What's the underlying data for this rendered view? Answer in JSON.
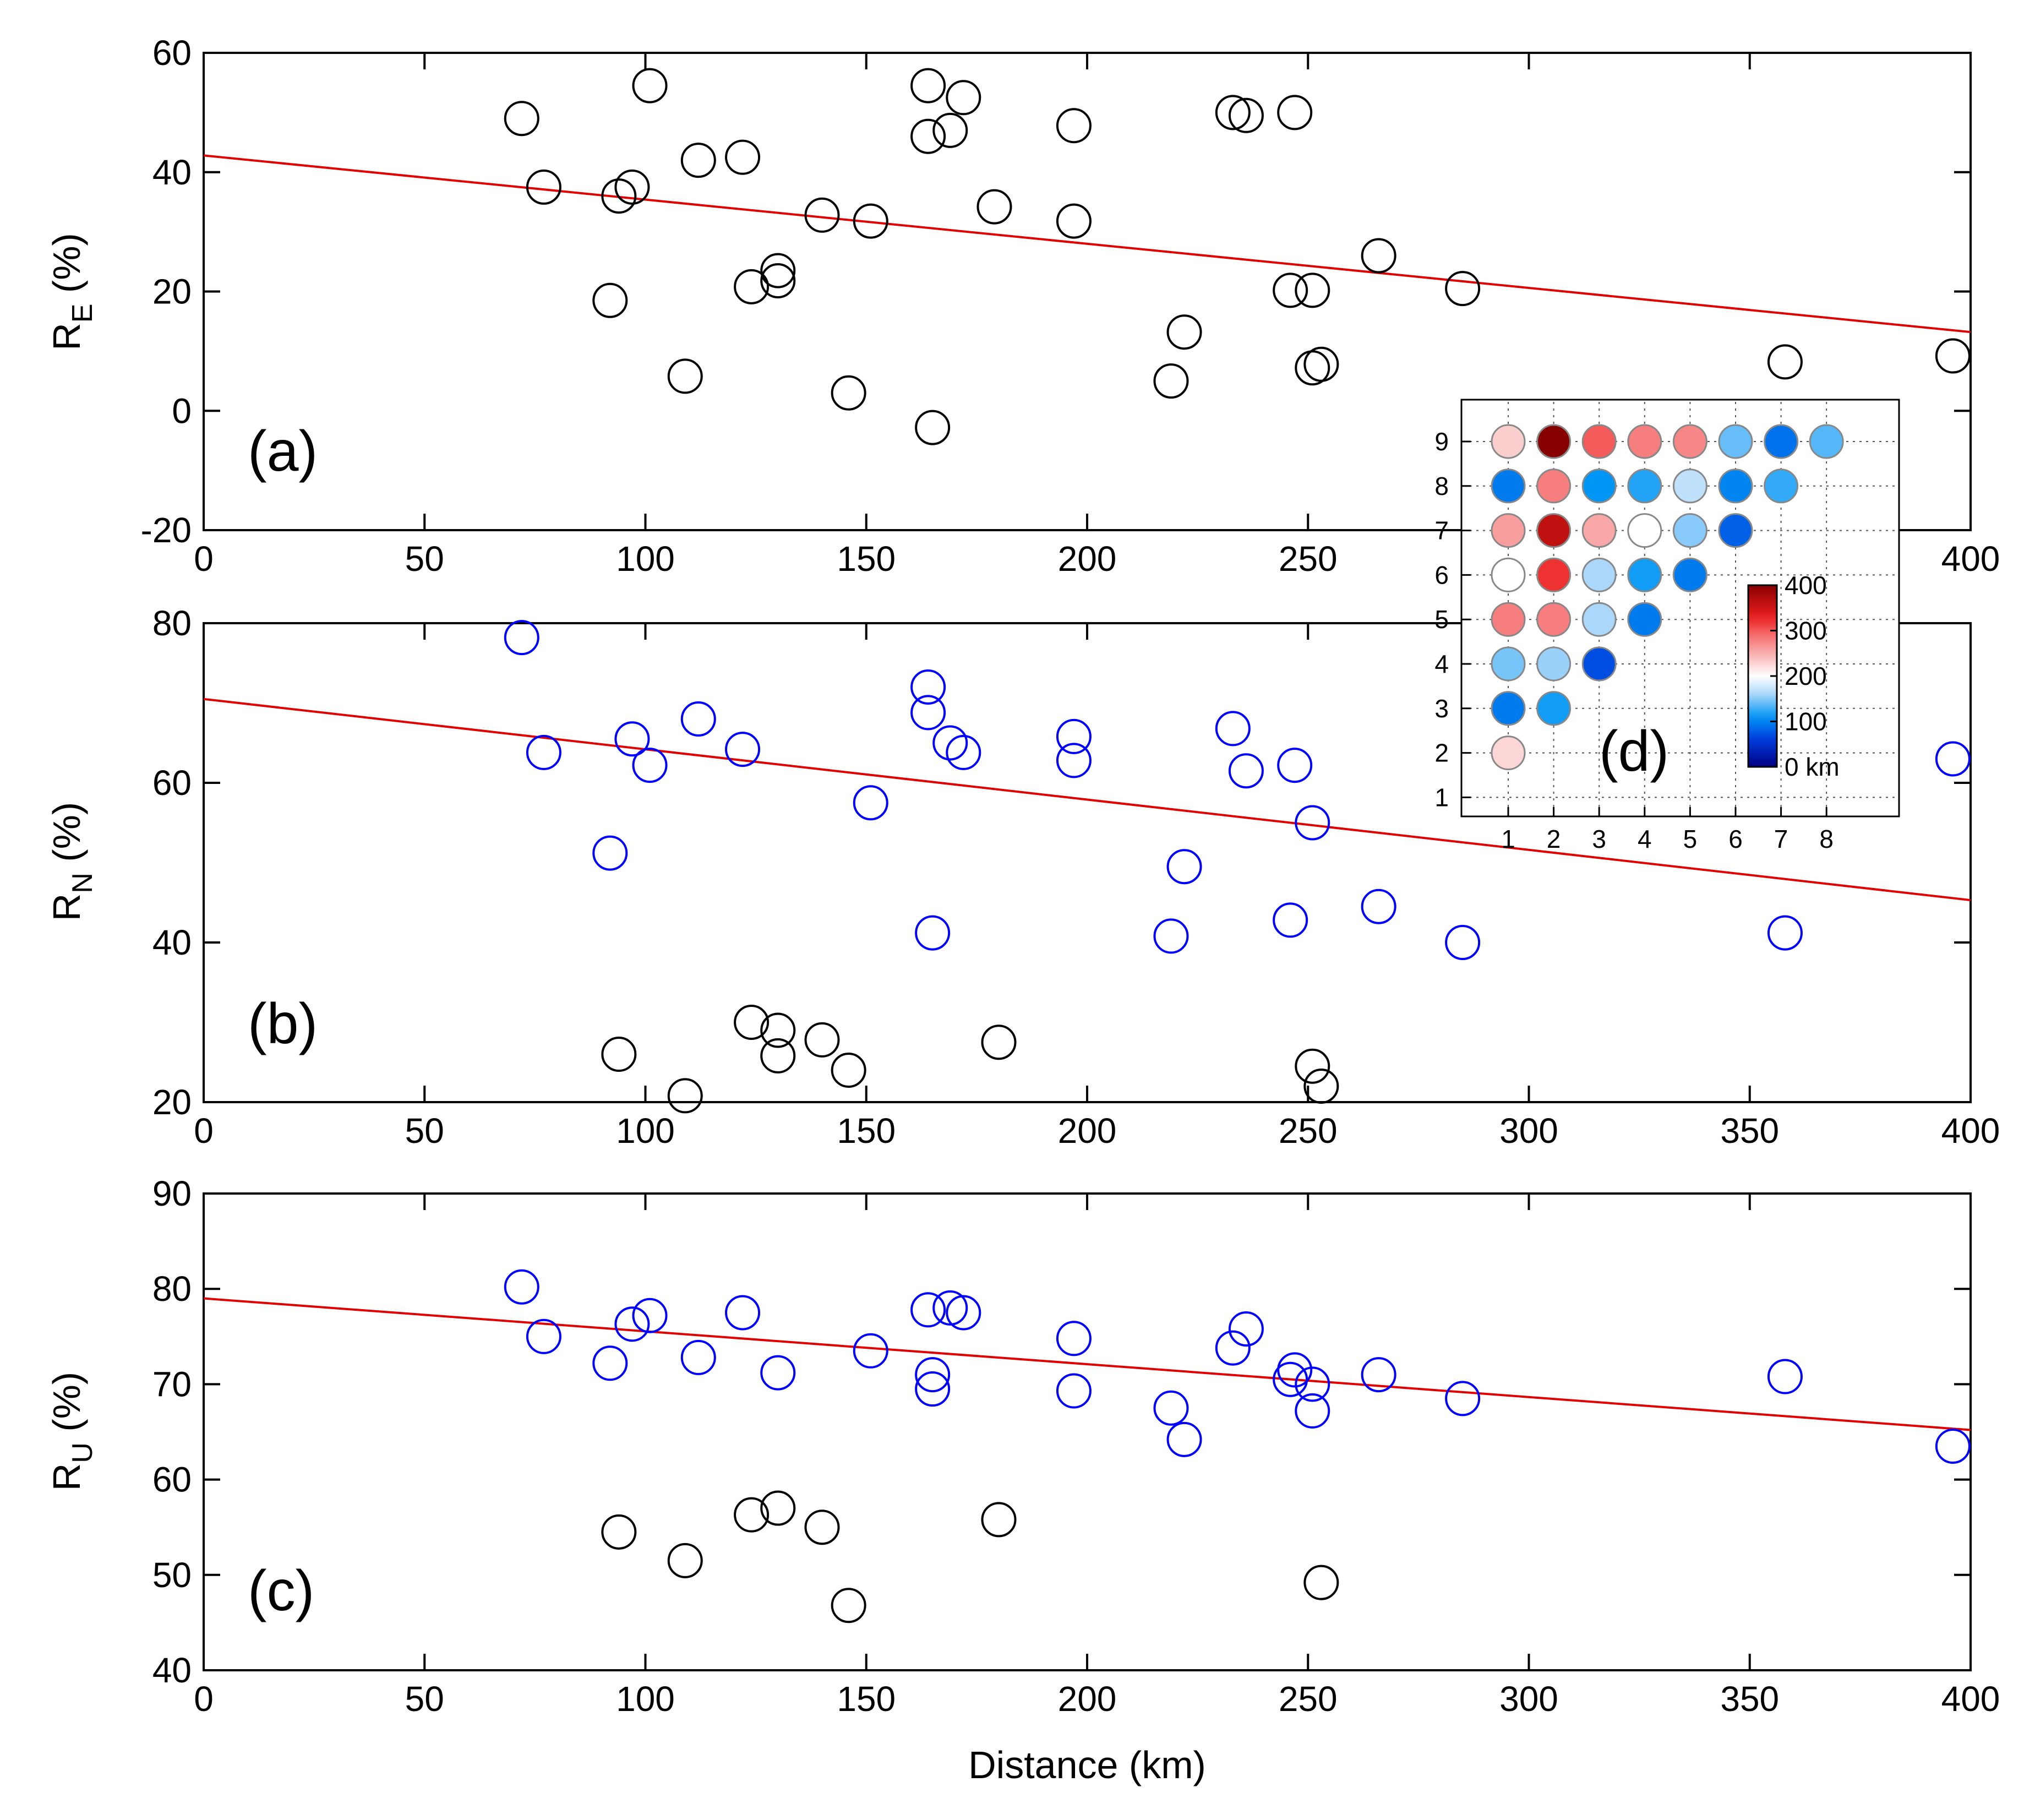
{
  "chart_data": [
    {
      "type": "scatter",
      "panel": "a",
      "panel_label": "(a)",
      "ylabel_main": "R",
      "ylabel_sub": "E",
      "ylabel_unit": " (%)",
      "xlabel": "",
      "xlim": [
        0,
        400
      ],
      "ylim": [
        -20,
        60
      ],
      "xticks": [
        0,
        50,
        100,
        150,
        200,
        250,
        300,
        350,
        400
      ],
      "yticks": [
        -20,
        0,
        20,
        40,
        60
      ],
      "fit_line": {
        "x": [
          0,
          400
        ],
        "y": [
          42.8,
          13.2
        ],
        "color": "#e00000"
      },
      "series": [
        {
          "name": "black",
          "color": "#000000",
          "points": [
            [
              72,
              49
            ],
            [
              77,
              37.5
            ],
            [
              92,
              18.5
            ],
            [
              94,
              36
            ],
            [
              97,
              37.5
            ],
            [
              101,
              54.5
            ],
            [
              109,
              5.8
            ],
            [
              112,
              42
            ],
            [
              122,
              42.5
            ],
            [
              124,
              20.8
            ],
            [
              130,
              23.5
            ],
            [
              130,
              21.8
            ],
            [
              140,
              32.8
            ],
            [
              146,
              3
            ],
            [
              151,
              31.8
            ],
            [
              164,
              54.5
            ],
            [
              164,
              46
            ],
            [
              165,
              -2.8
            ],
            [
              169,
              47
            ],
            [
              172,
              52.5
            ],
            [
              179,
              34.2
            ],
            [
              197,
              47.8
            ],
            [
              197,
              31.8
            ],
            [
              219,
              5
            ],
            [
              222,
              13.2
            ],
            [
              233,
              50
            ],
            [
              236,
              49.5
            ],
            [
              246,
              20.2
            ],
            [
              247,
              50
            ],
            [
              251,
              7.2
            ],
            [
              251,
              20.2
            ],
            [
              253,
              7.8
            ],
            [
              266,
              26
            ],
            [
              285,
              20.5
            ],
            [
              358,
              8.2
            ],
            [
              396,
              9.2
            ]
          ]
        }
      ]
    },
    {
      "type": "scatter",
      "panel": "b",
      "panel_label": "(b)",
      "ylabel_main": "R",
      "ylabel_sub": "N",
      "ylabel_unit": " (%)",
      "xlabel": "",
      "xlim": [
        0,
        400
      ],
      "ylim": [
        20,
        80
      ],
      "xticks": [
        0,
        50,
        100,
        150,
        200,
        250,
        300,
        350,
        400
      ],
      "yticks": [
        20,
        40,
        60,
        80
      ],
      "fit_line": {
        "x": [
          0,
          400
        ],
        "y": [
          70.5,
          45.3
        ],
        "color": "#e00000"
      },
      "series": [
        {
          "name": "blue",
          "color": "#0000ff",
          "points": [
            [
              72,
              78.2
            ],
            [
              77,
              63.8
            ],
            [
              92,
              51.2
            ],
            [
              97,
              65.5
            ],
            [
              101,
              62.2
            ],
            [
              112,
              68
            ],
            [
              122,
              64.2
            ],
            [
              151,
              57.5
            ],
            [
              164,
              72
            ],
            [
              164,
              68.8
            ],
            [
              169,
              65
            ],
            [
              172,
              63.8
            ],
            [
              165,
              41.2
            ],
            [
              197,
              65.8
            ],
            [
              197,
              62.8
            ],
            [
              219,
              40.8
            ],
            [
              222,
              49.5
            ],
            [
              233,
              66.8
            ],
            [
              236,
              61.5
            ],
            [
              246,
              42.8
            ],
            [
              247,
              62.2
            ],
            [
              251,
              55
            ],
            [
              266,
              44.5
            ],
            [
              285,
              40
            ],
            [
              358,
              41.2
            ],
            [
              396,
              63
            ]
          ]
        },
        {
          "name": "black",
          "color": "#000000",
          "points": [
            [
              94,
              26
            ],
            [
              109,
              20.8
            ],
            [
              124,
              30
            ],
            [
              130,
              29
            ],
            [
              130,
              25.8
            ],
            [
              140,
              27.8
            ],
            [
              146,
              24
            ],
            [
              180,
              27.5
            ],
            [
              251,
              24.5
            ],
            [
              253,
              22
            ]
          ]
        }
      ]
    },
    {
      "type": "scatter",
      "panel": "c",
      "panel_label": "(c)",
      "ylabel_main": "R",
      "ylabel_sub": "U",
      "ylabel_unit": " (%)",
      "xlabel": "Distance (km)",
      "xlim": [
        0,
        400
      ],
      "ylim": [
        40,
        90
      ],
      "xticks": [
        0,
        50,
        100,
        150,
        200,
        250,
        300,
        350,
        400
      ],
      "yticks": [
        40,
        50,
        60,
        70,
        80,
        90
      ],
      "fit_line": {
        "x": [
          0,
          400
        ],
        "y": [
          79,
          65.2
        ],
        "color": "#e00000"
      },
      "series": [
        {
          "name": "blue",
          "color": "#0000ff",
          "points": [
            [
              72,
              80.2
            ],
            [
              77,
              75
            ],
            [
              92,
              72.2
            ],
            [
              97,
              76.3
            ],
            [
              101,
              77.2
            ],
            [
              112,
              72.8
            ],
            [
              122,
              77.5
            ],
            [
              130,
              71.2
            ],
            [
              151,
              73.5
            ],
            [
              164,
              77.8
            ],
            [
              165,
              71
            ],
            [
              165,
              69.5
            ],
            [
              169,
              78
            ],
            [
              172,
              77.5
            ],
            [
              197,
              74.8
            ],
            [
              197,
              69.3
            ],
            [
              219,
              67.5
            ],
            [
              222,
              64.2
            ],
            [
              233,
              73.8
            ],
            [
              236,
              75.8
            ],
            [
              246,
              70.5
            ],
            [
              247,
              71.5
            ],
            [
              251,
              70
            ],
            [
              251,
              67.2
            ],
            [
              266,
              71
            ],
            [
              285,
              68.5
            ],
            [
              358,
              70.8
            ],
            [
              396,
              63.5
            ]
          ]
        },
        {
          "name": "black",
          "color": "#000000",
          "points": [
            [
              94,
              54.5
            ],
            [
              109,
              51.5
            ],
            [
              124,
              56.3
            ],
            [
              130,
              57
            ],
            [
              140,
              55
            ],
            [
              146,
              46.8
            ],
            [
              180,
              55.8
            ],
            [
              253,
              49.2
            ]
          ]
        }
      ]
    },
    {
      "type": "heatmap",
      "panel": "d",
      "panel_label": "(d)",
      "xticks": [
        1,
        2,
        3,
        4,
        5,
        6,
        7,
        8
      ],
      "yticks": [
        1,
        2,
        3,
        4,
        5,
        6,
        7,
        8,
        9
      ],
      "colorbar": {
        "ticks": [
          400,
          300,
          200,
          100
        ],
        "bottom_label": "0 km",
        "range": [
          0,
          400
        ]
      },
      "cells": [
        {
          "col": 1,
          "row": 9,
          "value": 230
        },
        {
          "col": 2,
          "row": 9,
          "value": 400
        },
        {
          "col": 3,
          "row": 9,
          "value": 300
        },
        {
          "col": 4,
          "row": 9,
          "value": 280
        },
        {
          "col": 5,
          "row": 9,
          "value": 275
        },
        {
          "col": 6,
          "row": 9,
          "value": 140
        },
        {
          "col": 7,
          "row": 9,
          "value": 90
        },
        {
          "col": 8,
          "row": 9,
          "value": 135
        },
        {
          "col": 1,
          "row": 8,
          "value": 95
        },
        {
          "col": 2,
          "row": 8,
          "value": 280
        },
        {
          "col": 3,
          "row": 8,
          "value": 110
        },
        {
          "col": 4,
          "row": 8,
          "value": 120
        },
        {
          "col": 5,
          "row": 8,
          "value": 170
        },
        {
          "col": 6,
          "row": 8,
          "value": 100
        },
        {
          "col": 7,
          "row": 8,
          "value": 125
        },
        {
          "col": 1,
          "row": 7,
          "value": 260
        },
        {
          "col": 2,
          "row": 7,
          "value": 360
        },
        {
          "col": 3,
          "row": 7,
          "value": 255
        },
        {
          "col": 4,
          "row": 7,
          "value": 200
        },
        {
          "col": 5,
          "row": 7,
          "value": 150
        },
        {
          "col": 6,
          "row": 7,
          "value": 80
        },
        {
          "col": 1,
          "row": 6,
          "value": 200
        },
        {
          "col": 2,
          "row": 6,
          "value": 320
        },
        {
          "col": 3,
          "row": 6,
          "value": 160
        },
        {
          "col": 4,
          "row": 6,
          "value": 115
        },
        {
          "col": 5,
          "row": 6,
          "value": 95
        },
        {
          "col": 1,
          "row": 5,
          "value": 280
        },
        {
          "col": 2,
          "row": 5,
          "value": 280
        },
        {
          "col": 3,
          "row": 5,
          "value": 160
        },
        {
          "col": 4,
          "row": 5,
          "value": 95
        },
        {
          "col": 1,
          "row": 4,
          "value": 145
        },
        {
          "col": 2,
          "row": 4,
          "value": 155
        },
        {
          "col": 3,
          "row": 4,
          "value": 70
        },
        {
          "col": 1,
          "row": 3,
          "value": 95
        },
        {
          "col": 2,
          "row": 3,
          "value": 115
        },
        {
          "col": 1,
          "row": 2,
          "value": 225
        }
      ]
    }
  ]
}
